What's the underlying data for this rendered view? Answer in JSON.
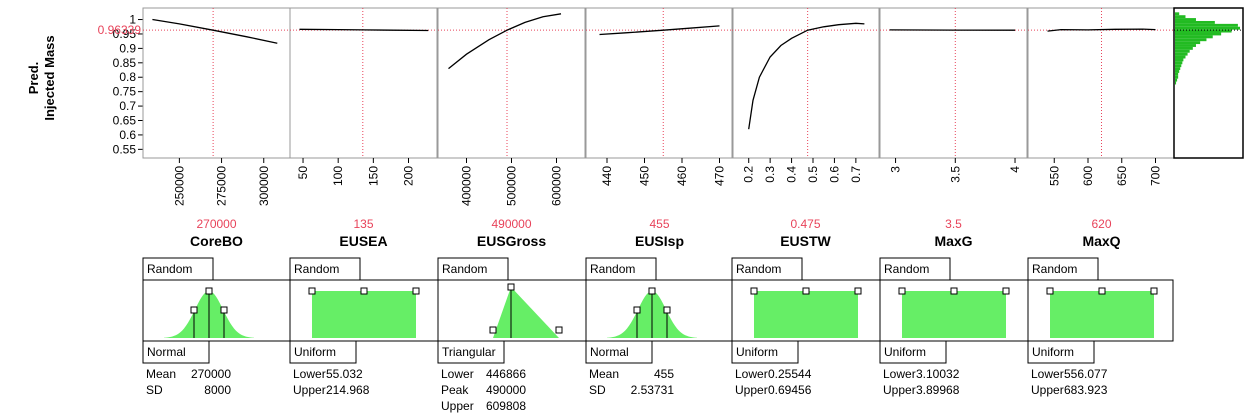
{
  "colors": {
    "curve": "#000000",
    "crosshair": "#e8435a",
    "histogram": "#22bb22",
    "dist_fill": "#66ee66",
    "frame": "#7a7a7a",
    "value_text": "#e8435a"
  },
  "profiler": {
    "ylabel_line1": "Pred.",
    "ylabel_line2": "Injected Mass",
    "current_response": "0.96339",
    "ylim": [
      0.52,
      1.04
    ],
    "y_ticks": [
      "1",
      "0.95",
      "0.9",
      "0.85",
      "0.8",
      "0.75",
      "0.7",
      "0.65",
      "0.6",
      "0.55"
    ],
    "y_tick_values": [
      1,
      0.95,
      0.9,
      0.85,
      0.8,
      0.75,
      0.7,
      0.65,
      0.6,
      0.55
    ]
  },
  "chart_data": {
    "type": "line",
    "factors": [
      {
        "name": "CoreBO",
        "current": "270000",
        "xlim": [
          232000,
          312000
        ],
        "ticks": [
          "250000",
          "275000",
          "300000"
        ],
        "tick_values": [
          250000,
          275000,
          300000
        ],
        "curve": {
          "x": [
            234000,
            250000,
            270000,
            290000,
            308000
          ],
          "y": [
            1.0,
            0.985,
            0.963,
            0.94,
            0.918
          ]
        }
      },
      {
        "name": "EUSEA",
        "current": "135",
        "xlim": [
          40,
          232
        ],
        "ticks": [
          "50",
          "100",
          "150",
          "200"
        ],
        "tick_values": [
          50,
          100,
          150,
          200
        ],
        "curve": {
          "x": [
            45,
            100,
            135,
            180,
            228
          ],
          "y": [
            0.966,
            0.965,
            0.964,
            0.963,
            0.962
          ]
        }
      },
      {
        "name": "EUSGross",
        "current": "490000",
        "xlim": [
          350000,
          650000
        ],
        "ticks": [
          "400000",
          "500000",
          "600000"
        ],
        "tick_values": [
          400000,
          500000,
          600000
        ],
        "curve": {
          "x": [
            360000,
            400000,
            450000,
            490000,
            530000,
            570000,
            610000
          ],
          "y": [
            0.83,
            0.88,
            0.93,
            0.963,
            0.99,
            1.01,
            1.02
          ]
        }
      },
      {
        "name": "EUSIsp",
        "current": "455",
        "xlim": [
          436,
          472
        ],
        "ticks": [
          "440",
          "450",
          "460",
          "470"
        ],
        "tick_values": [
          440,
          450,
          460,
          470
        ],
        "curve": {
          "x": [
            438,
            445,
            455,
            462,
            470
          ],
          "y": [
            0.948,
            0.954,
            0.963,
            0.97,
            0.978
          ]
        }
      },
      {
        "name": "EUSTW",
        "current": "0.475",
        "xlim": [
          0.15,
          0.78
        ],
        "ticks": [
          "0.2",
          "0.3",
          "0.4",
          "0.5",
          "0.6",
          "0.7"
        ],
        "tick_values": [
          0.2,
          0.3,
          0.4,
          0.5,
          0.6,
          0.7
        ],
        "curve": {
          "x": [
            0.2,
            0.22,
            0.25,
            0.3,
            0.35,
            0.4,
            0.475,
            0.55,
            0.62,
            0.7,
            0.74
          ],
          "y": [
            0.62,
            0.72,
            0.8,
            0.87,
            0.91,
            0.935,
            0.963,
            0.975,
            0.982,
            0.987,
            0.985
          ]
        }
      },
      {
        "name": "MaxG",
        "current": "3.5",
        "xlim": [
          2.92,
          4.05
        ],
        "ticks": [
          "3",
          "3.5",
          "4"
        ],
        "tick_values": [
          3,
          3.5,
          4
        ],
        "curve": {
          "x": [
            2.95,
            3.5,
            4.0
          ],
          "y": [
            0.964,
            0.9635,
            0.963
          ]
        }
      },
      {
        "name": "MaxQ",
        "current": "620",
        "xlim": [
          520,
          720
        ],
        "ticks": [
          "550",
          "600",
          "650",
          "700"
        ],
        "tick_values": [
          550,
          600,
          650,
          700
        ],
        "curve": {
          "x": [
            540,
            560,
            600,
            640,
            680,
            700
          ],
          "y": [
            0.96,
            0.965,
            0.964,
            0.966,
            0.967,
            0.965
          ]
        }
      }
    ],
    "histogram": {
      "bins_y": [
        1.02,
        1.01,
        1.0,
        0.99,
        0.98,
        0.97,
        0.96,
        0.95,
        0.94,
        0.93,
        0.92,
        0.91,
        0.9,
        0.89,
        0.88,
        0.87,
        0.86,
        0.85,
        0.84,
        0.83,
        0.82,
        0.81,
        0.8,
        0.79,
        0.78
      ],
      "counts": [
        4,
        10,
        20,
        38,
        60,
        62,
        54,
        44,
        36,
        30,
        24,
        20,
        17,
        14,
        12,
        10,
        8,
        7,
        6,
        5,
        4,
        3,
        3,
        2,
        1
      ]
    }
  },
  "distributions": [
    {
      "type": "Normal",
      "setting": "Random",
      "params": [
        {
          "k": "Mean",
          "v": "270000"
        },
        {
          "k": "SD",
          "v": "8000"
        }
      ]
    },
    {
      "type": "Uniform",
      "setting": "Random",
      "params": [
        {
          "k": "Lower",
          "v": "55.032"
        },
        {
          "k": "Upper",
          "v": "214.968"
        }
      ]
    },
    {
      "type": "Triangular",
      "setting": "Random",
      "params": [
        {
          "k": "Lower",
          "v": "446866"
        },
        {
          "k": "Peak",
          "v": "490000"
        },
        {
          "k": "Upper",
          "v": "609808"
        }
      ]
    },
    {
      "type": "Normal",
      "setting": "Random",
      "params": [
        {
          "k": "Mean",
          "v": "455"
        },
        {
          "k": "SD",
          "v": "2.53731"
        }
      ]
    },
    {
      "type": "Uniform",
      "setting": "Random",
      "params": [
        {
          "k": "Lower",
          "v": "0.25544"
        },
        {
          "k": "Upper",
          "v": "0.69456"
        }
      ]
    },
    {
      "type": "Uniform",
      "setting": "Random",
      "params": [
        {
          "k": "Lower",
          "v": "3.10032"
        },
        {
          "k": "Upper",
          "v": "3.89968"
        }
      ]
    },
    {
      "type": "Uniform",
      "setting": "Random",
      "params": [
        {
          "k": "Lower",
          "v": "556.077"
        },
        {
          "k": "Upper",
          "v": "683.923"
        }
      ]
    }
  ]
}
